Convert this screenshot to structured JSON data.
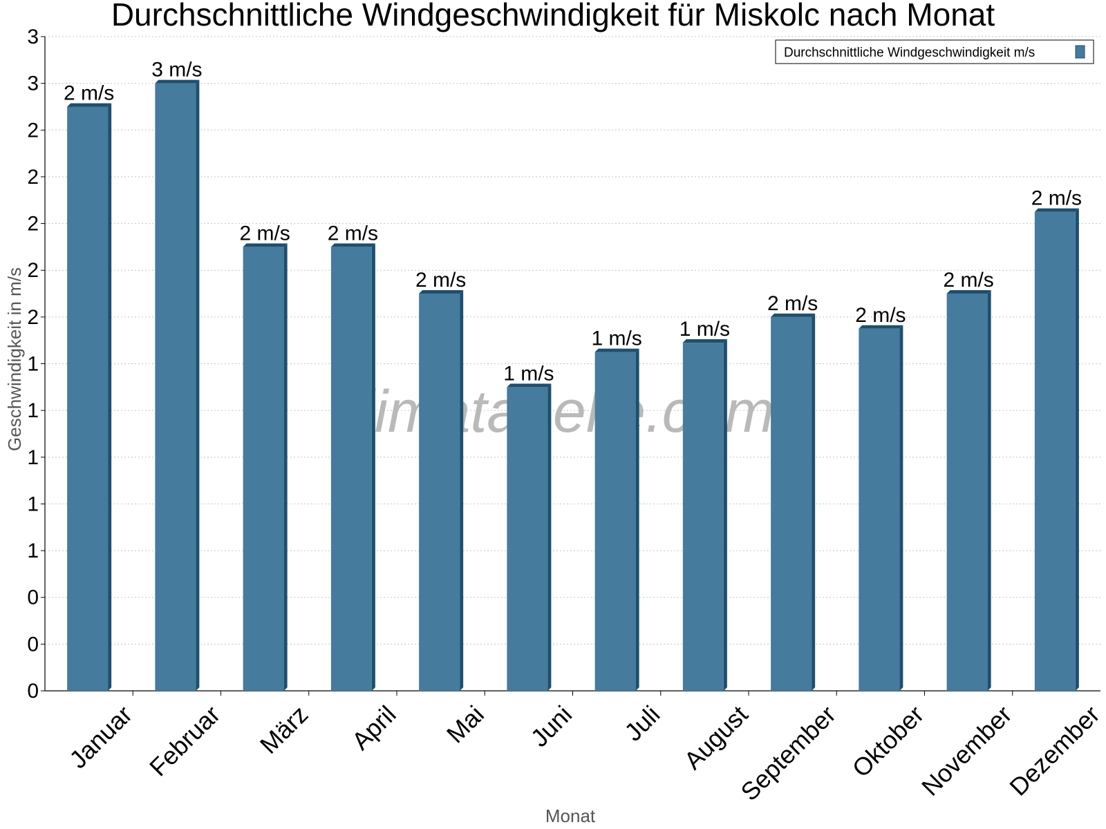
{
  "chart_data": {
    "type": "bar",
    "title": "Durchschnittliche Windgeschwindigkeit für Miskolc nach Monat",
    "xlabel": "Monat",
    "ylabel": "Geschwindigkeit in m/s",
    "categories": [
      "Januar",
      "Februar",
      "März",
      "April",
      "Mai",
      "Juni",
      "Juli",
      "August",
      "September",
      "Oktober",
      "November",
      "Dezember"
    ],
    "series": [
      {
        "name": "Durchschnittliche Windgeschwindigkeit m/s",
        "values": [
          2.5,
          2.6,
          1.9,
          1.9,
          1.7,
          1.3,
          1.45,
          1.49,
          1.6,
          1.55,
          1.7,
          2.05
        ],
        "data_labels": [
          "2 m/s",
          "3 m/s",
          "2 m/s",
          "2 m/s",
          "2 m/s",
          "1 m/s",
          "1 m/s",
          "1 m/s",
          "2 m/s",
          "2 m/s",
          "2 m/s",
          "2 m/s"
        ],
        "color": "#457b9d",
        "side_color": "#1f4e6e"
      }
    ],
    "ylim": [
      0,
      2.8
    ],
    "y_ticks": [
      0,
      0.2,
      0.4,
      0.6,
      0.8,
      1.0,
      1.2,
      1.4,
      1.6,
      1.8,
      2.0,
      2.2,
      2.4,
      2.6,
      2.8
    ],
    "y_tick_labels": [
      "0",
      "0",
      "0",
      "1",
      "1",
      "1",
      "1",
      "1",
      "2",
      "2",
      "2",
      "2",
      "2",
      "3",
      "3"
    ],
    "grid": true,
    "legend_position": "top-right",
    "watermark": "klimatabelle.com"
  }
}
